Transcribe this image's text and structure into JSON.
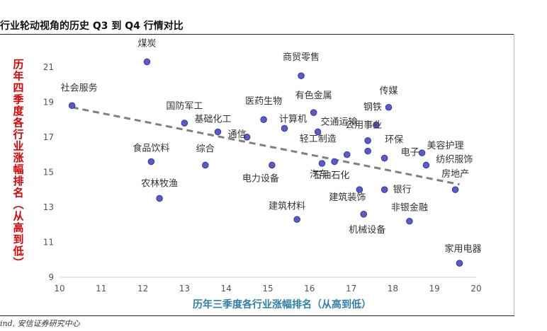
{
  "header": {
    "title": "行业轮动视角的历史 Q3 到 Q4 行情对比"
  },
  "footer": {
    "source": "ind, 安信证券研究中心"
  },
  "chart_data": {
    "type": "scatter",
    "title": "",
    "xlabel": "历年三季度各行业涨幅排名（从高到低）",
    "ylabel": "历年四季度各行业涨幅排名（从高到低）",
    "xlim": [
      10,
      20
    ],
    "ylim": [
      9,
      22
    ],
    "xticks": [
      10,
      11,
      12,
      13,
      14,
      15,
      16,
      17,
      18,
      19,
      20
    ],
    "yticks": [
      9,
      11,
      13,
      15,
      17,
      19,
      21
    ],
    "grid": false,
    "trendline": {
      "style": "dashed",
      "color": "#808080",
      "x": [
        10.3,
        19.6
      ],
      "y": [
        18.7,
        14.3
      ]
    },
    "marker_color": "#5a5ac8",
    "points": [
      {
        "label": "煤炭",
        "x": 12.1,
        "y": 21.3
      },
      {
        "label": "商贸零售",
        "x": 15.8,
        "y": 20.5
      },
      {
        "label": "社会服务",
        "x": 10.3,
        "y": 18.8
      },
      {
        "label": "国防军工",
        "x": 13.0,
        "y": 17.8
      },
      {
        "label": "基础化工",
        "x": 13.8,
        "y": 17.3
      },
      {
        "label": "医药生物",
        "x": 14.9,
        "y": 18.0
      },
      {
        "label": "通信",
        "x": 14.5,
        "y": 17.0
      },
      {
        "label": "有色金属",
        "x": 16.1,
        "y": 18.4
      },
      {
        "label": "计算机",
        "x": 15.4,
        "y": 17.5
      },
      {
        "label": "传媒",
        "x": 17.9,
        "y": 18.7
      },
      {
        "label": "钢铁",
        "x": 17.6,
        "y": 17.7
      },
      {
        "label": "公用事业",
        "x": 17.4,
        "y": 16.8
      },
      {
        "label": "环保",
        "x": 17.4,
        "y": 16.2
      },
      {
        "label": "电子",
        "x": 17.8,
        "y": 15.8
      },
      {
        "label": "美容护理",
        "x": 18.7,
        "y": 16.1
      },
      {
        "label": "纺织服饰",
        "x": 18.8,
        "y": 15.4
      },
      {
        "label": "轻工制造",
        "x": 16.9,
        "y": 16.0
      },
      {
        "label": "交通运输",
        "x": 16.2,
        "y": 17.3
      },
      {
        "label": "汽车",
        "x": 16.6,
        "y": 15.6
      },
      {
        "label": "食品饮料",
        "x": 12.2,
        "y": 15.6
      },
      {
        "label": "综合",
        "x": 13.5,
        "y": 15.4
      },
      {
        "label": "电力设备",
        "x": 15.1,
        "y": 15.4
      },
      {
        "label": "石油石化",
        "x": 16.3,
        "y": 15.5
      },
      {
        "label": "银行",
        "x": 17.8,
        "y": 14.0
      },
      {
        "label": "房地产",
        "x": 19.5,
        "y": 14.0
      },
      {
        "label": "农林牧渔",
        "x": 12.4,
        "y": 13.5
      },
      {
        "label": "建筑装饰",
        "x": 17.2,
        "y": 14.0
      },
      {
        "label": "建筑材料",
        "x": 15.7,
        "y": 12.3
      },
      {
        "label": "机械设备",
        "x": 17.3,
        "y": 12.6
      },
      {
        "label": "非银金融",
        "x": 18.4,
        "y": 12.2
      },
      {
        "label": "家用电器",
        "x": 19.6,
        "y": 9.8
      }
    ]
  }
}
